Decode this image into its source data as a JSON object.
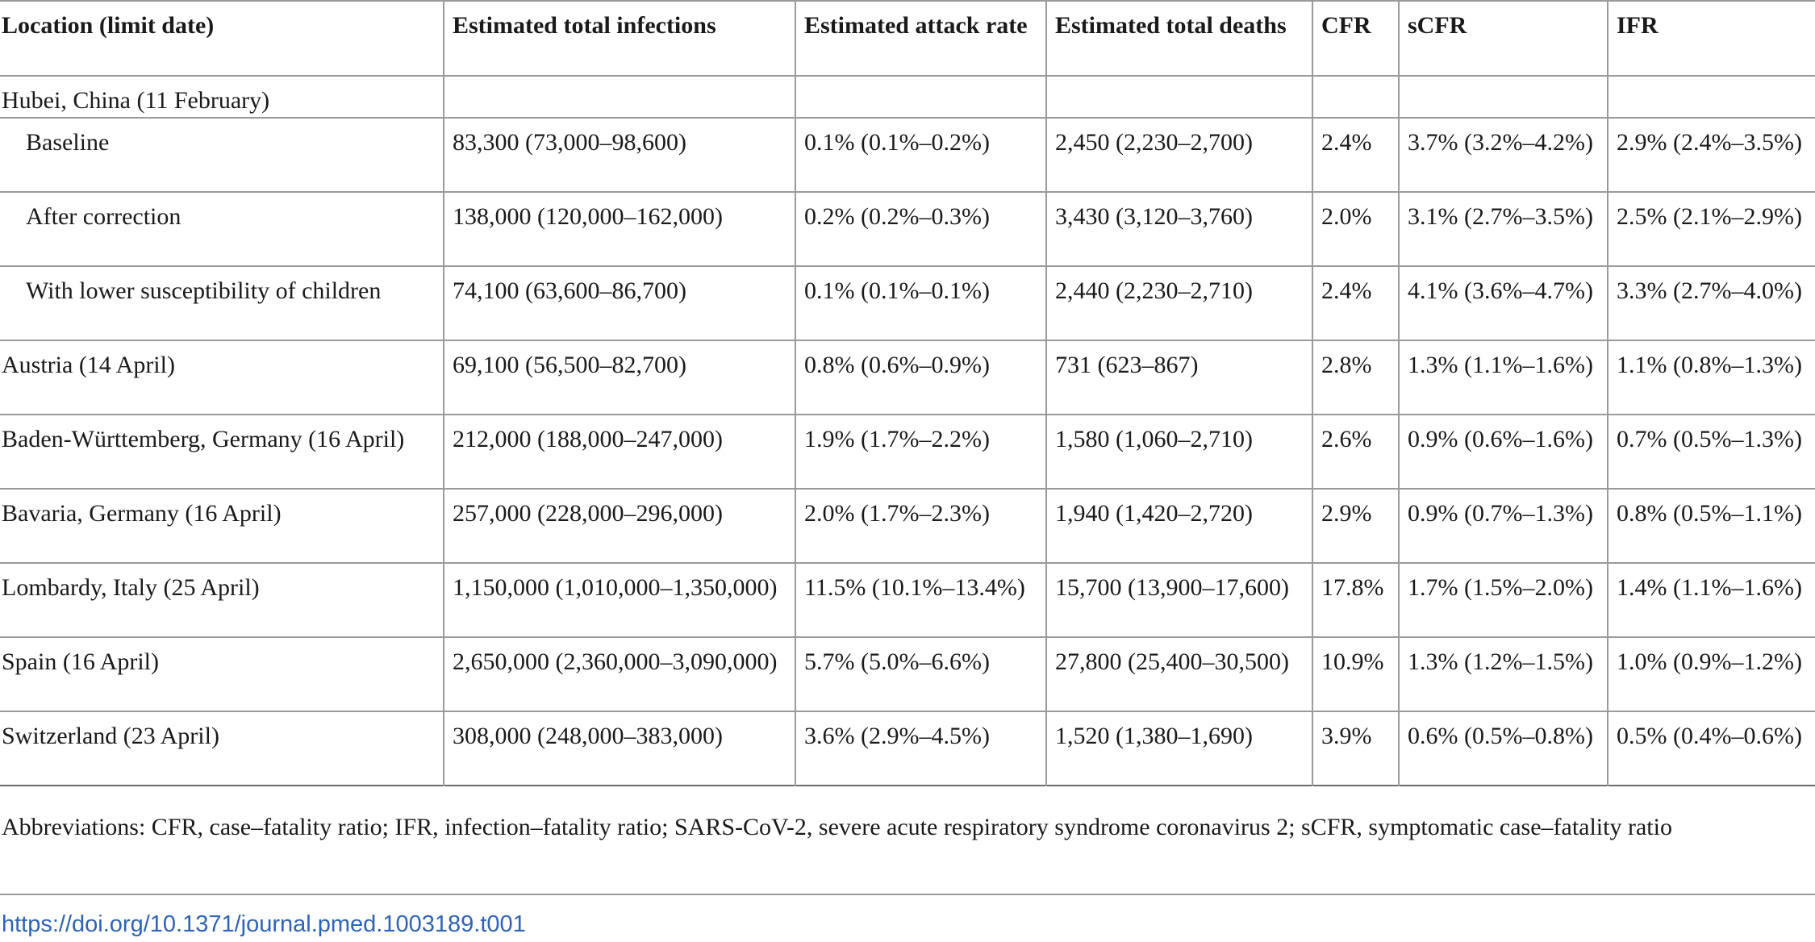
{
  "table": {
    "headers": [
      "Location (limit date)",
      "Estimated total infections",
      "Estimated attack rate",
      "Estimated total deaths",
      "CFR",
      "sCFR",
      "IFR"
    ],
    "rows": [
      {
        "cells": [
          "Hubei, China (11 February)",
          "",
          "",
          "",
          "",
          "",
          ""
        ]
      },
      {
        "cells": [
          "Baseline",
          "83,300 (73,000–98,600)",
          "0.1% (0.1%–0.2%)",
          "2,450 (2,230–2,700)",
          "2.4%",
          "3.7% (3.2%–4.2%)",
          "2.9% (2.4%–3.5%)"
        ]
      },
      {
        "cells": [
          "After correction",
          "138,000 (120,000–162,000)",
          "0.2% (0.2%–0.3%)",
          "3,430 (3,120–3,760)",
          "2.0%",
          "3.1% (2.7%–3.5%)",
          "2.5% (2.1%–2.9%)"
        ]
      },
      {
        "cells": [
          "With lower susceptibility of children",
          "74,100 (63,600–86,700)",
          "0.1% (0.1%–0.1%)",
          "2,440 (2,230–2,710)",
          "2.4%",
          "4.1% (3.6%–4.7%)",
          "3.3% (2.7%–4.0%)"
        ]
      },
      {
        "cells": [
          "Austria (14 April)",
          "69,100 (56,500–82,700)",
          "0.8% (0.6%–0.9%)",
          "731 (623–867)",
          "2.8%",
          "1.3% (1.1%–1.6%)",
          "1.1% (0.8%–1.3%)"
        ]
      },
      {
        "cells": [
          "Baden-Württemberg, Germany (16 April)",
          "212,000 (188,000–247,000)",
          "1.9% (1.7%–2.2%)",
          "1,580 (1,060–2,710)",
          "2.6%",
          "0.9% (0.6%–1.6%)",
          "0.7% (0.5%–1.3%)"
        ]
      },
      {
        "cells": [
          "Bavaria, Germany (16 April)",
          "257,000 (228,000–296,000)",
          "2.0% (1.7%–2.3%)",
          "1,940 (1,420–2,720)",
          "2.9%",
          "0.9% (0.7%–1.3%)",
          "0.8% (0.5%–1.1%)"
        ]
      },
      {
        "cells": [
          "Lombardy, Italy (25 April)",
          "1,150,000 (1,010,000–1,350,000)",
          "11.5% (10.1%–13.4%)",
          "15,700 (13,900–17,600)",
          "17.8%",
          "1.7% (1.5%–2.0%)",
          "1.4% (1.1%–1.6%)"
        ]
      },
      {
        "cells": [
          "Spain (16 April)",
          "2,650,000 (2,360,000–3,090,000)",
          "5.7% (5.0%–6.6%)",
          "27,800 (25,400–30,500)",
          "10.9%",
          "1.3% (1.2%–1.5%)",
          "1.0% (0.9%–1.2%)"
        ]
      },
      {
        "cells": [
          "Switzerland (23 April)",
          "308,000 (248,000–383,000)",
          "3.6% (2.9%–4.5%)",
          "1,520 (1,380–1,690)",
          "3.9%",
          "0.6% (0.5%–0.8%)",
          "0.5% (0.4%–0.6%)"
        ]
      }
    ]
  },
  "footnote": "Abbreviations: CFR, case–fatality ratio; IFR, infection–fatality ratio; SARS-CoV-2, severe acute respiratory syndrome coronavirus 2; sCFR, symptomatic case–fatality ratio",
  "doi_link": "https://doi.org/10.1371/journal.pmed.1003189.t001",
  "colors": {
    "link": "#2e63b6",
    "rule": "#9a9a9a"
  }
}
